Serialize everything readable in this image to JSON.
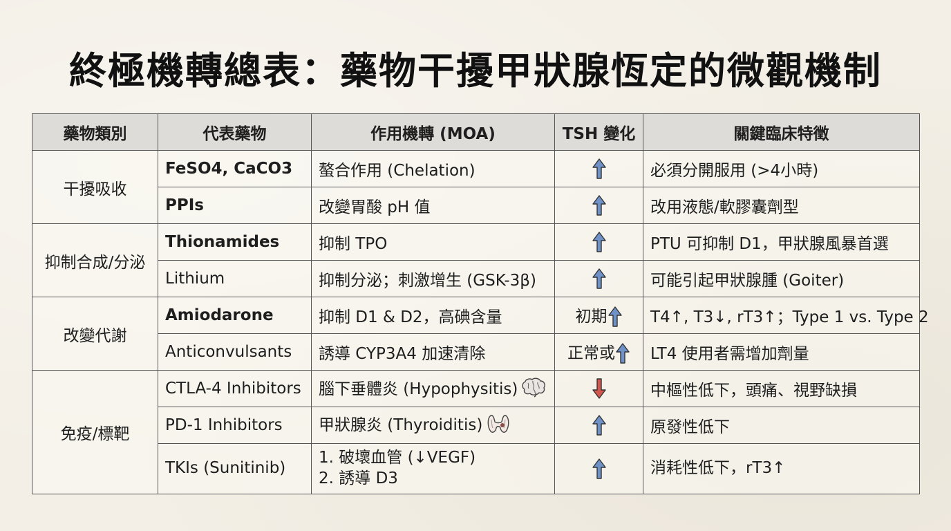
{
  "title": "終極機轉總表：藥物干擾甲狀腺恆定的微觀機制",
  "table": {
    "headers": [
      "藥物類別",
      "代表藥物",
      "作用機轉 (MOA)",
      "TSH 變化",
      "關鍵臨床特徵"
    ],
    "groups": [
      {
        "category": "干擾吸收",
        "rows": [
          {
            "drug": "FeSO4, CaCO3",
            "moa": "螯合作用 (Chelation)",
            "tsh_prefix": "",
            "tsh_direction": "up",
            "feature": "必須分開服用 (>4小時)"
          },
          {
            "drug": "PPIs",
            "moa": "改變胃酸 pH 值",
            "tsh_prefix": "",
            "tsh_direction": "up",
            "feature": "改用液態/軟膠囊劑型"
          }
        ]
      },
      {
        "category": "抑制合成/分泌",
        "rows": [
          {
            "drug": "Thionamides",
            "moa": "抑制 TPO",
            "tsh_prefix": "",
            "tsh_direction": "up",
            "feature": "PTU 可抑制 D1，甲狀腺風暴首選"
          },
          {
            "drug": "Lithium",
            "moa": "抑制分泌；刺激增生 (GSK-3β)",
            "tsh_prefix": "",
            "tsh_direction": "up",
            "feature": "可能引起甲狀腺腫 (Goiter)"
          }
        ]
      },
      {
        "category": "改變代謝",
        "rows": [
          {
            "drug": "Amiodarone",
            "moa": "抑制 D1 & D2，高碘含量",
            "tsh_prefix": "初期",
            "tsh_direction": "up",
            "feature": "T4↑, T3↓, rT3↑；Type 1 vs. Type 2"
          },
          {
            "drug": "Anticonvulsants",
            "moa": "誘導 CYP3A4 加速清除",
            "tsh_prefix": "正常或",
            "tsh_direction": "up",
            "feature": "LT4 使用者需增加劑量"
          }
        ]
      },
      {
        "category": "免疫/標靶",
        "rows": [
          {
            "drug": "CTLA-4 Inhibitors",
            "moa": "腦下垂體炎 (Hypophysitis)",
            "moa_icon": "brain-icon",
            "tsh_prefix": "",
            "tsh_direction": "down",
            "feature": "中樞性低下，頭痛、視野缺損"
          },
          {
            "drug": "PD-1 Inhibitors",
            "moa": "甲狀腺炎 (Thyroiditis)",
            "moa_icon": "thyroid-icon",
            "tsh_prefix": "",
            "tsh_direction": "up",
            "feature": "原發性低下"
          },
          {
            "drug": "TKIs (Sunitinib)",
            "moa_line1": "1. 破壞血管 (↓VEGF)",
            "moa_line2": "2. 誘導 D3",
            "tsh_prefix": "",
            "tsh_direction": "up",
            "feature": "消耗性低下，rT3↑"
          }
        ]
      }
    ]
  },
  "colors": {
    "arrow_up": "#6f93c9",
    "arrow_down": "#d2574e",
    "header_bg": "#dedcd8",
    "border": "#555555"
  }
}
